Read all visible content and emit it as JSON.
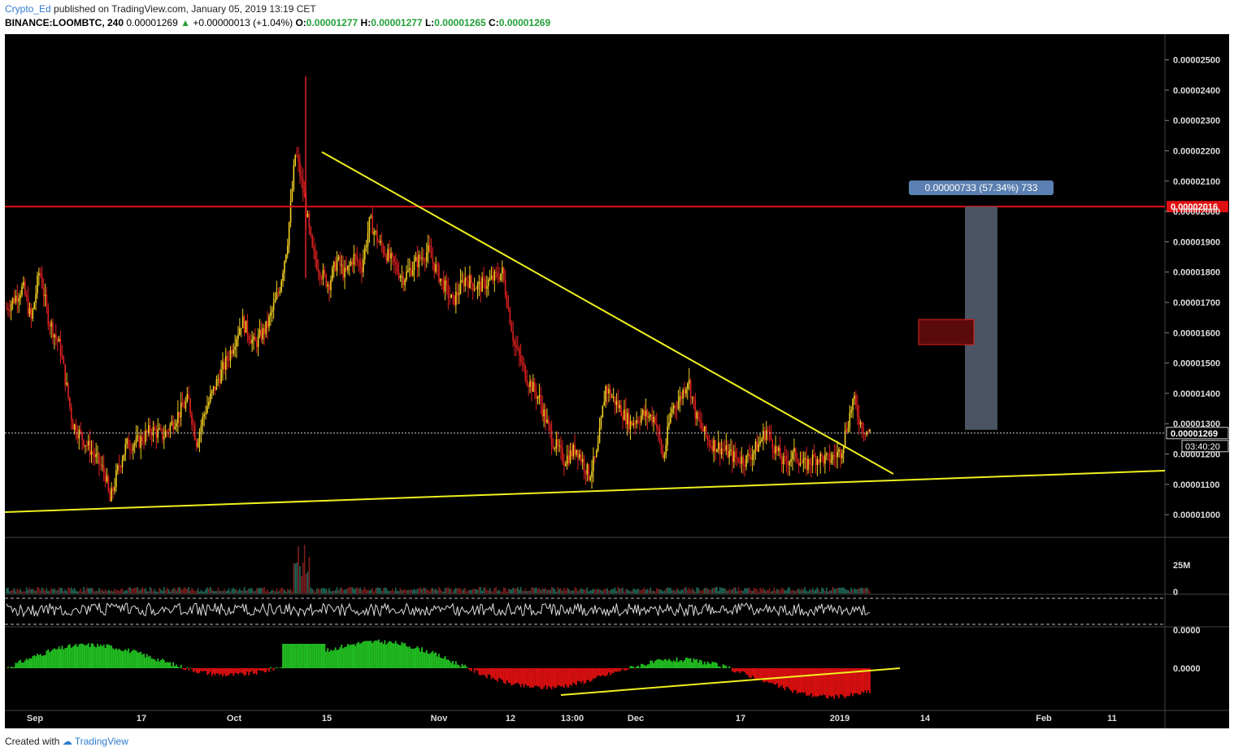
{
  "header": {
    "author": "Crypto_Ed",
    "published_text": "published on TradingView.com, January 05, 2019 13:19 CET",
    "symbol": "BINANCE:LOOMBTC, 240",
    "last": "0.00001269",
    "change": "+0.00000013 (+1.04%)",
    "o_label": "O:",
    "o_value": "0.00001277",
    "h_label": "H:",
    "h_value": "0.00001277",
    "l_label": "L:",
    "l_value": "0.00001265",
    "c_label": "C:",
    "c_value": "0.00001269"
  },
  "footer": {
    "created_with": "Created with",
    "brand": "TradingView"
  },
  "colors": {
    "background": "#000000",
    "candle_up": "#f5d020",
    "candle_down": "#e02020",
    "trendline": "#f0f020",
    "resistance": "#e01010",
    "range_box": "#4e5867",
    "osc_up": "#22c222",
    "osc_down": "#e01010"
  },
  "chart_data": {
    "type": "candlestick",
    "price_axis": {
      "ticks": [
        "0.00002500",
        "0.00002400",
        "0.00002300",
        "0.00002200",
        "0.00002100",
        "0.00002000",
        "0.00001900",
        "0.00001800",
        "0.00001700",
        "0.00001600",
        "0.00001500",
        "0.00001400",
        "0.00001300",
        "0.00001200",
        "0.00001100",
        "0.00001000"
      ],
      "ylim": [
        9.6e-06,
        2.55e-05
      ]
    },
    "time_axis": {
      "labels": [
        "Sep",
        "17",
        "Oct",
        "15",
        "Nov",
        "12",
        "13:00",
        "Dec",
        "17",
        "2019",
        "14",
        "Feb",
        "11"
      ]
    },
    "price_path": [
      [
        0,
        1.68e-05
      ],
      [
        4,
        1.75e-05
      ],
      [
        6,
        1.64e-05
      ],
      [
        8,
        1.81e-05
      ],
      [
        10,
        1.65e-05
      ],
      [
        13,
        1.55e-05
      ],
      [
        16,
        1.3e-05
      ],
      [
        19,
        1.24e-05
      ],
      [
        22,
        1.18e-05
      ],
      [
        24,
        1.13e-05
      ],
      [
        25,
        1.04e-05
      ],
      [
        27,
        1.15e-05
      ],
      [
        29,
        1.23e-05
      ],
      [
        32,
        1.24e-05
      ],
      [
        35,
        1.28e-05
      ],
      [
        38,
        1.26e-05
      ],
      [
        41,
        1.32e-05
      ],
      [
        44,
        1.38e-05
      ],
      [
        46,
        1.24e-05
      ],
      [
        48,
        1.34e-05
      ],
      [
        51,
        1.44e-05
      ],
      [
        54,
        1.53e-05
      ],
      [
        57,
        1.64e-05
      ],
      [
        60,
        1.56e-05
      ],
      [
        63,
        1.62e-05
      ],
      [
        66,
        1.74e-05
      ],
      [
        68,
        1.9e-05
      ],
      [
        70,
        2.2e-05
      ],
      [
        72,
        2.05e-05
      ],
      [
        74,
        1.87e-05
      ],
      [
        76,
        1.8e-05
      ],
      [
        78,
        1.76e-05
      ],
      [
        80,
        1.84e-05
      ],
      [
        82,
        1.79e-05
      ],
      [
        84,
        1.85e-05
      ],
      [
        86,
        1.82e-05
      ],
      [
        88,
        1.97e-05
      ],
      [
        90,
        1.9e-05
      ],
      [
        93,
        1.84e-05
      ],
      [
        96,
        1.78e-05
      ],
      [
        99,
        1.83e-05
      ],
      [
        102,
        1.87e-05
      ],
      [
        105,
        1.78e-05
      ],
      [
        108,
        1.7e-05
      ],
      [
        111,
        1.78e-05
      ],
      [
        114,
        1.75e-05
      ],
      [
        117,
        1.77e-05
      ],
      [
        120,
        1.8e-05
      ],
      [
        123,
        1.56e-05
      ],
      [
        126,
        1.45e-05
      ],
      [
        129,
        1.38e-05
      ],
      [
        132,
        1.25e-05
      ],
      [
        135,
        1.18e-05
      ],
      [
        138,
        1.22e-05
      ],
      [
        141,
        1.13e-05
      ],
      [
        143,
        1.2e-05
      ],
      [
        145,
        1.42e-05
      ],
      [
        148,
        1.36e-05
      ],
      [
        151,
        1.3e-05
      ],
      [
        154,
        1.33e-05
      ],
      [
        157,
        1.32e-05
      ],
      [
        159,
        1.18e-05
      ],
      [
        161,
        1.35e-05
      ],
      [
        163,
        1.38e-05
      ],
      [
        165,
        1.45e-05
      ],
      [
        167,
        1.32e-05
      ],
      [
        170,
        1.24e-05
      ],
      [
        173,
        1.22e-05
      ],
      [
        176,
        1.19e-05
      ],
      [
        179,
        1.18e-05
      ],
      [
        182,
        1.23e-05
      ],
      [
        184,
        1.28e-05
      ],
      [
        186,
        1.22e-05
      ],
      [
        188,
        1.17e-05
      ],
      [
        191,
        1.2e-05
      ],
      [
        193,
        1.16e-05
      ],
      [
        196,
        1.19e-05
      ],
      [
        199,
        1.18e-05
      ],
      [
        202,
        1.21e-05
      ],
      [
        205,
        1.38e-05
      ],
      [
        207,
        1.29e-05
      ],
      [
        209,
        1.27e-05
      ]
    ],
    "resistance_level": 2.016e-05,
    "resistance_label": "0.00002016",
    "last_price": 1.269e-05,
    "last_price_label": "0.00001269",
    "countdown": "03:40:20",
    "measure_label": "0.00000733 (57.34%) 733",
    "volume_axis": {
      "ticks": [
        "25M",
        "0"
      ]
    },
    "oscillator_axis": {
      "ticks": [
        "0.0000",
        "0.0000"
      ]
    }
  }
}
